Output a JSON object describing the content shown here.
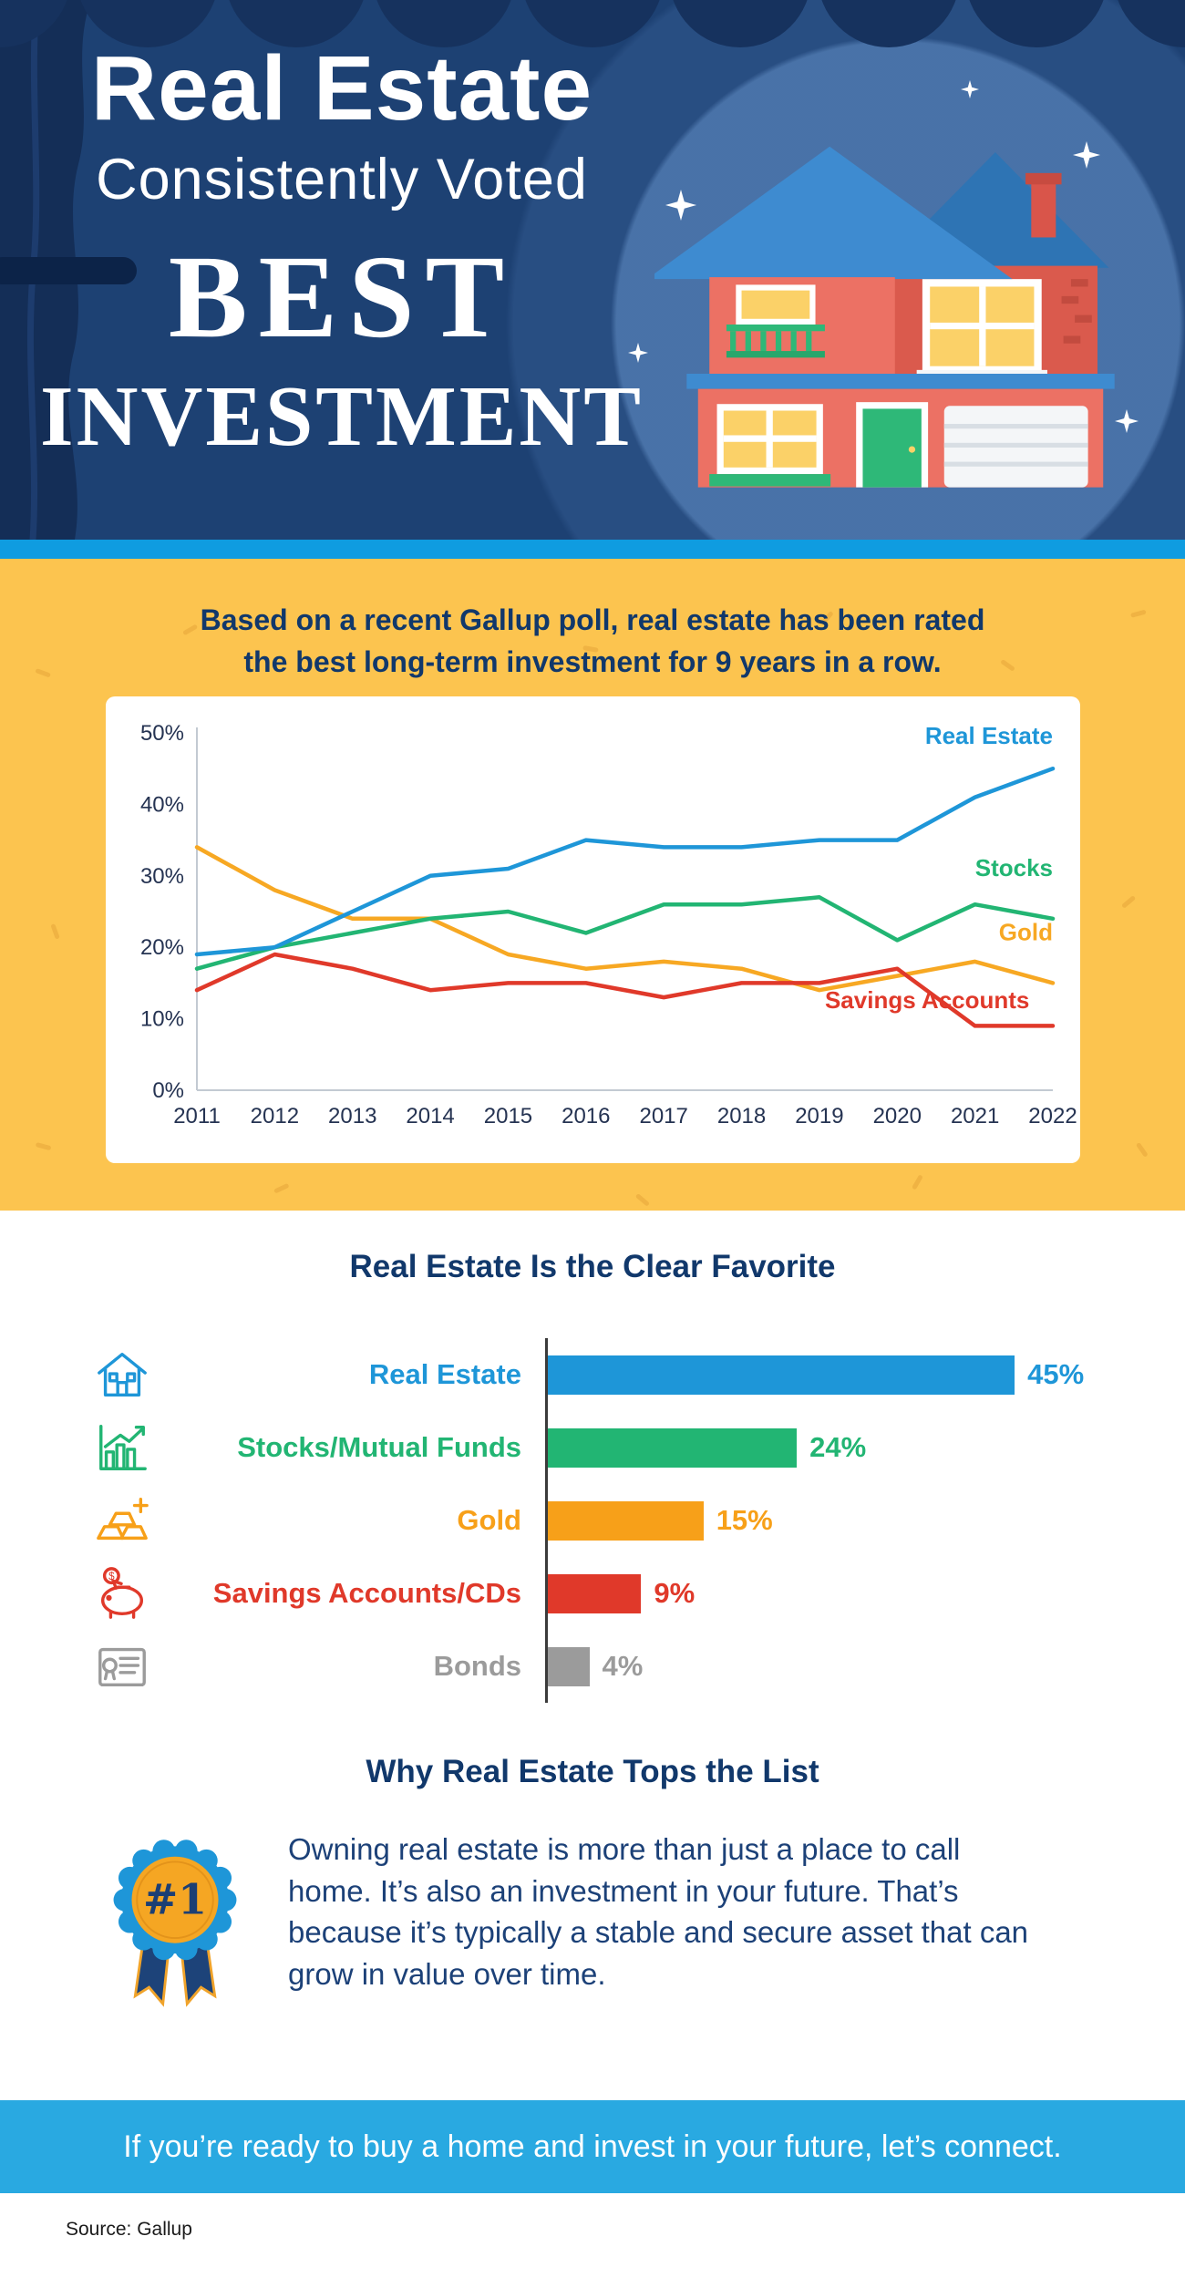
{
  "header": {
    "title_line1": "Real Estate",
    "title_line2": "Consistently Voted",
    "title_line3": "BEST",
    "title_line4": "INVESTMENT"
  },
  "poll": {
    "intro_line1": "Based on a recent Gallup poll, real estate has been rated",
    "intro_line2": "the best long-term investment for 9 years in a row."
  },
  "chart_data": [
    {
      "type": "line",
      "x": [
        2011,
        2012,
        2013,
        2014,
        2015,
        2016,
        2017,
        2018,
        2019,
        2020,
        2021,
        2022
      ],
      "ylim": [
        0,
        50
      ],
      "ytick_values": [
        0,
        10,
        20,
        30,
        40,
        50
      ],
      "yticks": [
        "0%",
        "10%",
        "20%",
        "30%",
        "40%",
        "50%"
      ],
      "grid": false,
      "legend": "inline-labels",
      "series": [
        {
          "name": "Gold",
          "color": "#f7a823",
          "values": [
            34,
            28,
            24,
            24,
            19,
            17,
            18,
            17,
            14,
            16,
            18,
            15
          ],
          "label_pos": {
            "x": 2022,
            "y": 21,
            "anchor": "end"
          }
        },
        {
          "name": "Savings Accounts",
          "color": "#e0392a",
          "values": [
            14,
            19,
            17,
            14,
            15,
            15,
            13,
            15,
            15,
            17,
            9,
            9
          ],
          "label_pos": {
            "x": 2021.7,
            "y": 11.5,
            "anchor": "end"
          }
        },
        {
          "name": "Stocks",
          "color": "#22b573",
          "values": [
            17,
            20,
            22,
            24,
            25,
            22,
            26,
            26,
            27,
            21,
            26,
            24
          ],
          "label_pos": {
            "x": 2022,
            "y": 30,
            "anchor": "end"
          }
        },
        {
          "name": "Real Estate",
          "color": "#1e96d8",
          "values": [
            19,
            20,
            25,
            30,
            31,
            35,
            34,
            34,
            35,
            35,
            41,
            45
          ],
          "label_pos": {
            "x": 2022,
            "y": 48.5,
            "anchor": "end"
          }
        }
      ]
    },
    {
      "type": "bar",
      "orientation": "horizontal",
      "title": "Real Estate Is the Clear Favorite",
      "categories": [
        "Real Estate",
        "Stocks/Mutual Funds",
        "Gold",
        "Savings Accounts/CDs",
        "Bonds"
      ],
      "values": [
        45,
        24,
        15,
        9,
        4
      ],
      "value_labels": [
        "45%",
        "24%",
        "15%",
        "9%",
        "4%"
      ],
      "colors": [
        "#1e96d8",
        "#22b573",
        "#f7a019",
        "#e0392a",
        "#9b9b9b"
      ],
      "icons": [
        "house-icon",
        "stock-chart-icon",
        "gold-bars-icon",
        "piggy-bank-icon",
        "bond-certificate-icon"
      ],
      "xlim": [
        0,
        50
      ]
    }
  ],
  "why": {
    "title": "Why Real Estate Tops the List",
    "badge": "#1",
    "body": "Owning real estate is more than just a place to call home. It’s also an investment in your future. That’s because it’s typically a stable and secure asset that can grow in value over time."
  },
  "cta": {
    "text": "If you’re ready to buy a home and invest in your future, let’s connect."
  },
  "footer": {
    "source": "Source: Gallup"
  }
}
